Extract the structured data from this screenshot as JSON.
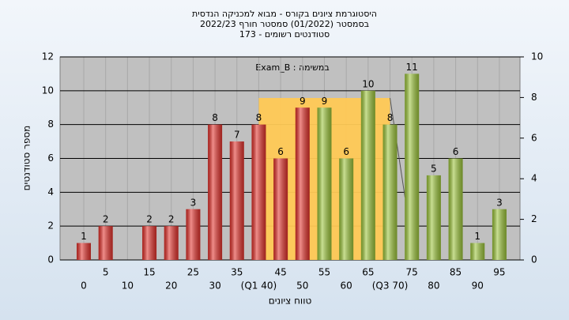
{
  "chart_data": {
    "type": "bar",
    "title": [
      "היסטוגרמת ציונים בקורס - מבוא למכניקה הנדסית",
      "בסמסטר  (01/2022)  סמסטר חורף 2022/23",
      "סטודנטים רשומים - 173"
    ],
    "annotation": "במשימה : Exam_B",
    "x_label": "טווח ציונים",
    "y_label": "מספר סטודנטים",
    "categories": [
      "0",
      "5",
      "10",
      "15",
      "20",
      "25",
      "30",
      "35",
      "(Q1 40)",
      "45",
      "50",
      "55",
      "60",
      "65",
      "(Q3 70)",
      "75",
      "80",
      "85",
      "90",
      "95"
    ],
    "values": [
      1,
      2,
      null,
      2,
      2,
      3,
      8,
      7,
      8,
      6,
      9,
      9,
      6,
      10,
      8,
      11,
      5,
      6,
      1,
      3
    ],
    "colors": [
      "#e3312b",
      "#e3312b",
      "#e3312b",
      "#e3312b",
      "#e3312b",
      "#e3312b",
      "#e3312b",
      "#e3312b",
      "#e3312b",
      "#e3312b",
      "#e3312b",
      "#9cc53a",
      "#9cc53a",
      "#9cc53a",
      "#9cc53a",
      "#9cc53a",
      "#9cc53a",
      "#9cc53a",
      "#9cc53a",
      "#9cc53a"
    ],
    "ylim": [
      0,
      12
    ],
    "yticks": [
      0,
      2,
      4,
      6,
      8,
      10,
      12
    ],
    "y2lim": [
      0,
      10
    ],
    "y2ticks": [
      0,
      2,
      4,
      6,
      8,
      10
    ],
    "grid": true
  }
}
